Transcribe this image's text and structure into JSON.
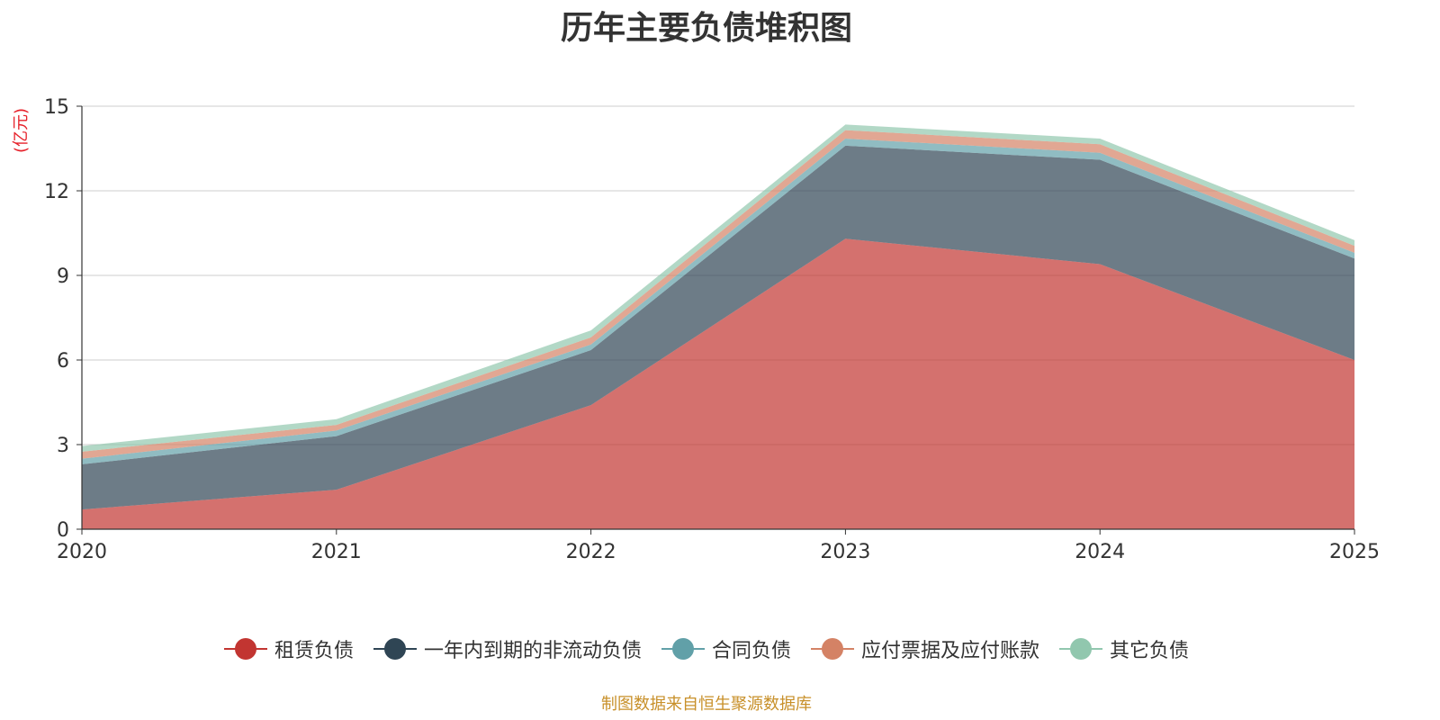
{
  "chart_data": {
    "type": "area",
    "stacked": true,
    "title": "历年主要负债堆积图",
    "unit_label": "(亿元)",
    "x": [
      "2020",
      "2021",
      "2022",
      "2023",
      "2024",
      "2025"
    ],
    "ylim": [
      0,
      15
    ],
    "yticks": [
      "0",
      "3",
      "6",
      "9",
      "12",
      "15"
    ],
    "series": [
      {
        "name": "租赁负债",
        "color": "#c23531",
        "values": [
          0.7,
          1.4,
          4.4,
          10.3,
          9.4,
          6.0
        ]
      },
      {
        "name": "一年内到期的非流动负债",
        "color": "#2f4554",
        "values": [
          1.6,
          1.9,
          1.95,
          3.3,
          3.7,
          3.6
        ]
      },
      {
        "name": "合同负债",
        "color": "#61a0a8",
        "values": [
          0.2,
          0.2,
          0.2,
          0.25,
          0.25,
          0.2
        ]
      },
      {
        "name": "应付票据及应付账款",
        "color": "#d48265",
        "values": [
          0.25,
          0.2,
          0.25,
          0.3,
          0.3,
          0.25
        ]
      },
      {
        "name": "其它负债",
        "color": "#91c7ae",
        "values": [
          0.2,
          0.2,
          0.25,
          0.2,
          0.2,
          0.2
        ]
      }
    ],
    "grid": true,
    "legend_position": "bottom"
  },
  "source_text": "制图数据来自恒生聚源数据库"
}
